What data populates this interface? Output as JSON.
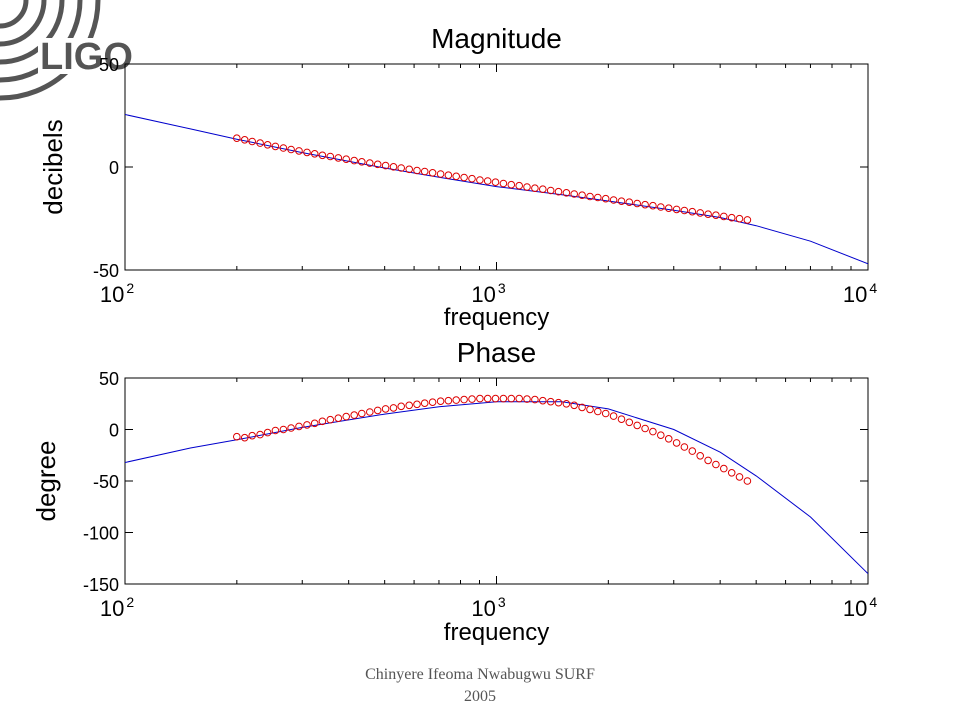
{
  "logo": {
    "text": "LIGO",
    "icon": "ligo-arcs-logo"
  },
  "footer": {
    "line1": "Chinyere Ifeoma Nwabugwu SURF",
    "line2": "2005"
  },
  "colors": {
    "model": "#0000cc",
    "measured": "#dd0000",
    "axis": "#000000",
    "logo": "#555555"
  },
  "chart_data": [
    {
      "type": "line",
      "title": "Magnitude",
      "xlabel": "frequency",
      "ylabel": "decibels",
      "xscale": "log",
      "xlim": [
        100,
        10000
      ],
      "ylim": [
        -50,
        50
      ],
      "xticks": [
        {
          "base": "10",
          "exp": "2",
          "value": 100
        },
        {
          "base": "10",
          "exp": "3",
          "value": 1000
        },
        {
          "base": "10",
          "exp": "4",
          "value": 10000
        }
      ],
      "yticks": [
        50,
        0,
        -50
      ],
      "grid": false,
      "series": [
        {
          "style": "line",
          "color": "#0000cc",
          "x": [
            100,
            150,
            200,
            300,
            500,
            700,
            1000,
            1500,
            2000,
            3000,
            4000,
            5000,
            7000,
            10000
          ],
          "y": [
            25.5,
            18.5,
            13.5,
            7,
            -0.5,
            -5,
            -9.5,
            -13.5,
            -16.5,
            -21,
            -24.5,
            -28.5,
            -36,
            -47
          ]
        },
        {
          "style": "markers",
          "marker": "circle",
          "color": "#dd0000",
          "x": [
            200,
            210,
            220,
            231,
            242,
            254,
            267,
            280,
            294,
            309,
            324,
            340,
            357,
            375,
            394,
            414,
            434,
            456,
            479,
            503,
            528,
            554,
            582,
            611,
            641,
            673,
            707,
            742,
            779,
            818,
            859,
            902,
            947,
            994,
            1044,
            1096,
            1151,
            1208,
            1269,
            1332,
            1399,
            1469,
            1542,
            1619,
            1700,
            1785,
            1874,
            1968,
            2066,
            2170,
            2278,
            2392,
            2512,
            2637,
            2769,
            2907,
            3053,
            3205,
            3366,
            3534,
            3711,
            3896,
            4091,
            4296,
            4510,
            4736
          ],
          "y": [
            14,
            13.2,
            12.4,
            11.6,
            10.8,
            10,
            9.2,
            8.5,
            7.8,
            7.1,
            6.4,
            5.7,
            5.1,
            4.4,
            3.8,
            3.1,
            2.5,
            1.9,
            1.3,
            0.7,
            0.1,
            -0.5,
            -1.1,
            -1.7,
            -2.2,
            -2.8,
            -3.4,
            -4,
            -4.5,
            -5.1,
            -5.7,
            -6.3,
            -6.8,
            -7.4,
            -8,
            -8.6,
            -9.1,
            -9.7,
            -10.3,
            -10.8,
            -11.4,
            -12,
            -12.5,
            -13.1,
            -13.7,
            -14.3,
            -14.8,
            -15.4,
            -16,
            -16.6,
            -17.1,
            -17.7,
            -18.3,
            -18.8,
            -19.4,
            -20,
            -20.6,
            -21.1,
            -21.7,
            -22.3,
            -22.9,
            -23.4,
            -24,
            -24.6,
            -25.1,
            -25.7
          ]
        }
      ]
    },
    {
      "type": "line",
      "title": "Phase",
      "xlabel": "frequency",
      "ylabel": "degree",
      "xscale": "log",
      "xlim": [
        100,
        10000
      ],
      "ylim": [
        -150,
        50
      ],
      "xticks": [
        {
          "base": "10",
          "exp": "2",
          "value": 100
        },
        {
          "base": "10",
          "exp": "3",
          "value": 1000
        },
        {
          "base": "10",
          "exp": "4",
          "value": 10000
        }
      ],
      "yticks": [
        50,
        0,
        -50,
        -100,
        -150
      ],
      "grid": false,
      "series": [
        {
          "style": "line",
          "color": "#0000cc",
          "x": [
            100,
            150,
            200,
            300,
            500,
            700,
            1000,
            1500,
            2000,
            3000,
            4000,
            5000,
            7000,
            10000
          ],
          "y": [
            -32,
            -18,
            -10,
            2,
            15,
            22,
            27,
            27,
            20,
            0,
            -22,
            -45,
            -85,
            -140
          ]
        },
        {
          "style": "markers",
          "marker": "circle",
          "color": "#dd0000",
          "x": [
            200,
            210,
            220,
            231,
            242,
            254,
            267,
            280,
            294,
            309,
            324,
            340,
            357,
            375,
            394,
            414,
            434,
            456,
            479,
            503,
            528,
            554,
            582,
            611,
            641,
            673,
            707,
            742,
            779,
            818,
            859,
            902,
            947,
            994,
            1044,
            1096,
            1151,
            1208,
            1269,
            1332,
            1399,
            1469,
            1542,
            1619,
            1700,
            1785,
            1874,
            1968,
            2066,
            2170,
            2278,
            2392,
            2512,
            2637,
            2769,
            2907,
            3053,
            3205,
            3366,
            3534,
            3711,
            3896,
            4091,
            4296,
            4510,
            4736
          ],
          "y": [
            -7,
            -8,
            -6,
            -5,
            -3,
            -1,
            0,
            1.5,
            3,
            4.5,
            6,
            8,
            9.5,
            11,
            12.5,
            14,
            15.5,
            17,
            18.5,
            20,
            21,
            22.5,
            23.5,
            24.5,
            25.5,
            26.5,
            27.5,
            28,
            28.5,
            29,
            29.5,
            30,
            30,
            30,
            30,
            30,
            30,
            29.5,
            29,
            28,
            27,
            26,
            25,
            23.5,
            21.5,
            19.5,
            17.5,
            15.5,
            13,
            10,
            7,
            4,
            1,
            -2,
            -5.5,
            -9,
            -13,
            -17,
            -21,
            -25.5,
            -30,
            -34,
            -38,
            -42,
            -46,
            -50
          ]
        }
      ]
    }
  ]
}
